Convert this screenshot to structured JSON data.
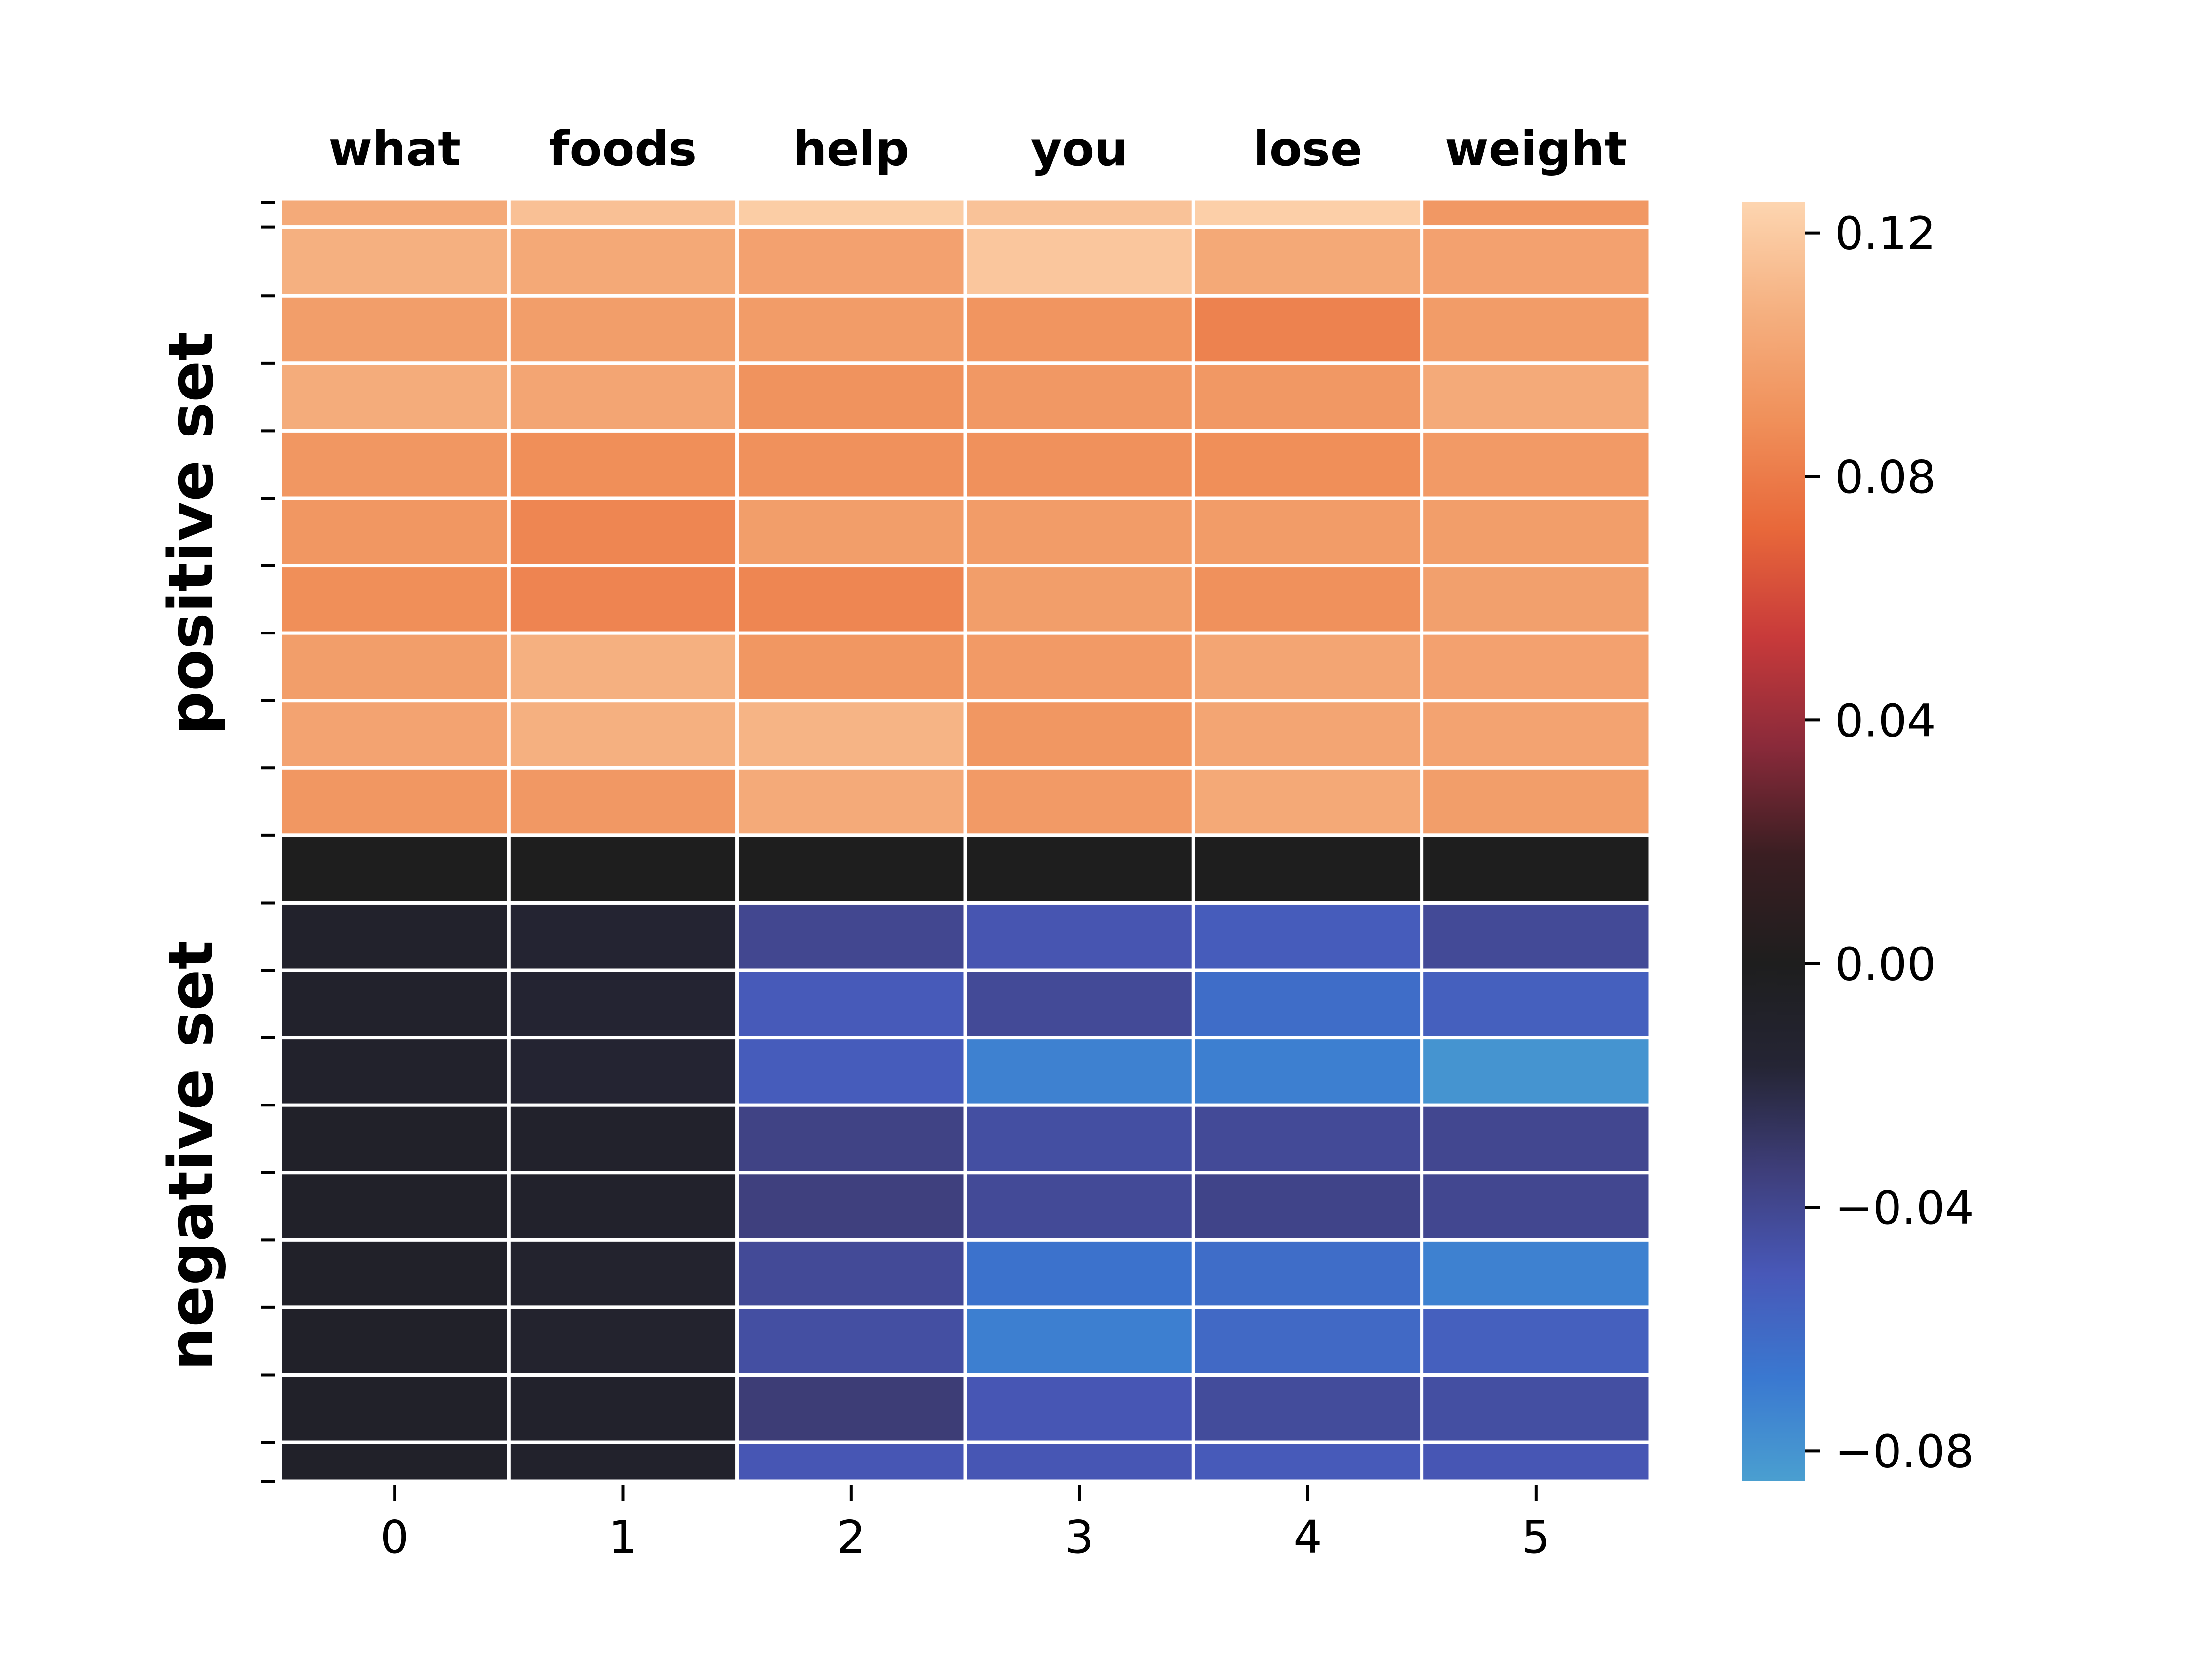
{
  "chart_data": {
    "type": "heatmap",
    "tokens": [
      "what",
      "foods",
      "help",
      "you",
      "lose",
      "weight"
    ],
    "x_ticks": [
      "0",
      "1",
      "2",
      "3",
      "4",
      "5"
    ],
    "group_labels": [
      "positive set",
      "negative set"
    ],
    "colorbar": {
      "min": -0.085,
      "max": 0.125,
      "ticks": [
        0.12,
        0.08,
        0.04,
        0.0,
        -0.04,
        -0.08
      ],
      "tick_labels": [
        "0.12",
        "0.08",
        "0.04",
        "0.00",
        "−0.04",
        "−0.08"
      ],
      "colormap": "icefire",
      "colors": [
        "#4a9fd0",
        "#3a78d0",
        "#4858b8",
        "#3e3e7a",
        "#252535",
        "#1e1e1e",
        "#3a1e22",
        "#8a2a3a",
        "#c83a3a",
        "#e8683a",
        "#f0905a",
        "#f5b080",
        "#fdd5b0"
      ]
    },
    "rows": [
      {
        "group": "positive",
        "values": [
          0.104,
          0.115,
          0.121,
          0.116,
          0.122,
          0.094
        ]
      },
      {
        "group": "positive",
        "values": [
          0.107,
          0.103,
          0.099,
          0.118,
          0.103,
          0.099
        ]
      },
      {
        "group": "positive",
        "values": [
          0.097,
          0.097,
          0.096,
          0.092,
          0.083,
          0.096
        ]
      },
      {
        "group": "positive",
        "values": [
          0.105,
          0.101,
          0.091,
          0.094,
          0.094,
          0.104
        ]
      },
      {
        "group": "positive",
        "values": [
          0.093,
          0.089,
          0.09,
          0.09,
          0.089,
          0.095
        ]
      },
      {
        "group": "positive",
        "values": [
          0.093,
          0.085,
          0.097,
          0.096,
          0.096,
          0.097
        ]
      },
      {
        "group": "positive",
        "values": [
          0.089,
          0.084,
          0.085,
          0.097,
          0.09,
          0.098
        ]
      },
      {
        "group": "positive",
        "values": [
          0.097,
          0.107,
          0.093,
          0.095,
          0.101,
          0.099
        ]
      },
      {
        "group": "positive",
        "values": [
          0.1,
          0.107,
          0.109,
          0.093,
          0.101,
          0.1
        ]
      },
      {
        "group": "positive",
        "values": [
          0.093,
          0.094,
          0.104,
          0.095,
          0.103,
          0.097
        ]
      },
      {
        "group": "divider",
        "values": [
          0.0,
          0.0,
          0.0,
          0.0,
          0.0,
          0.0
        ]
      },
      {
        "group": "negative",
        "values": [
          -0.01,
          -0.015,
          -0.04,
          -0.049,
          -0.053,
          -0.042
        ]
      },
      {
        "group": "negative",
        "values": [
          -0.01,
          -0.015,
          -0.052,
          -0.042,
          -0.062,
          -0.055
        ]
      },
      {
        "group": "negative",
        "values": [
          -0.01,
          -0.015,
          -0.053,
          -0.072,
          -0.071,
          -0.08
        ]
      },
      {
        "group": "negative",
        "values": [
          -0.008,
          -0.01,
          -0.037,
          -0.045,
          -0.042,
          -0.04
        ]
      },
      {
        "group": "negative",
        "values": [
          -0.008,
          -0.01,
          -0.035,
          -0.042,
          -0.038,
          -0.04
        ]
      },
      {
        "group": "negative",
        "values": [
          -0.008,
          -0.012,
          -0.042,
          -0.065,
          -0.062,
          -0.072
        ]
      },
      {
        "group": "negative",
        "values": [
          -0.008,
          -0.012,
          -0.045,
          -0.071,
          -0.06,
          -0.055
        ]
      },
      {
        "group": "negative",
        "values": [
          -0.008,
          -0.01,
          -0.033,
          -0.05,
          -0.043,
          -0.045
        ]
      },
      {
        "group": "negative",
        "values": [
          -0.008,
          -0.01,
          -0.05,
          -0.05,
          -0.052,
          -0.05
        ]
      }
    ]
  }
}
